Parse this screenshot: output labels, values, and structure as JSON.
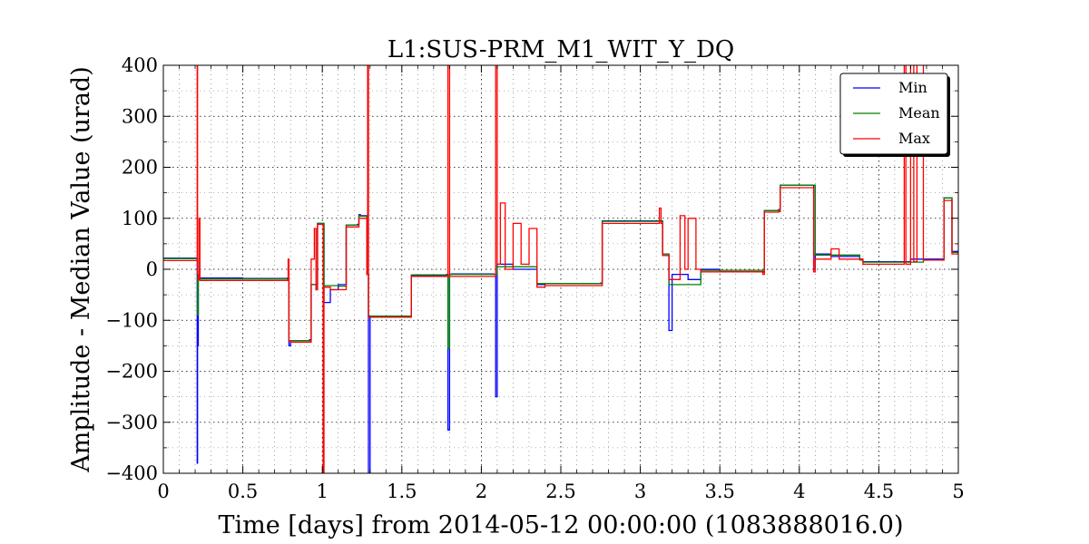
{
  "chart_data": {
    "type": "line",
    "title": "L1:SUS-PRM_M1_WIT_Y_DQ",
    "xlabel": "Time [days] from 2014-05-12 00:00:00 (1083888016.0)",
    "ylabel": "Amplitude - Median Value (urad)",
    "xlim": [
      0,
      5
    ],
    "ylim": [
      -400,
      400
    ],
    "x_ticks": [
      0,
      0.5,
      1,
      1.5,
      2,
      2.5,
      3,
      3.5,
      4,
      4.5,
      5
    ],
    "x_tick_labels": [
      "0",
      "0.5",
      "1",
      "1.5",
      "2",
      "2.5",
      "3",
      "3.5",
      "4",
      "4.5",
      "5"
    ],
    "y_ticks": [
      -400,
      -300,
      -200,
      -100,
      0,
      100,
      200,
      300,
      400
    ],
    "y_tick_labels": [
      "−400",
      "−300",
      "−200",
      "−100",
      "0",
      "100",
      "200",
      "300",
      "400"
    ],
    "grid": true,
    "legend_position": "top-right",
    "series": [
      {
        "name": "Min",
        "color": "#0000ff",
        "x": [
          0,
          0.21,
          0.213,
          0.215,
          0.217,
          0.22,
          0.23,
          0.5,
          0.78,
          0.79,
          0.8,
          0.92,
          0.93,
          0.96,
          0.97,
          1.0,
          1.01,
          1.05,
          1.1,
          1.14,
          1.15,
          1.22,
          1.23,
          1.24,
          1.28,
          1.29,
          1.3,
          1.55,
          1.56,
          1.78,
          1.79,
          1.8,
          1.81,
          2.08,
          2.09,
          2.1,
          2.2,
          2.35,
          2.4,
          2.75,
          2.76,
          3.13,
          3.14,
          3.17,
          3.18,
          3.2,
          3.3,
          3.38,
          3.5,
          3.77,
          3.78,
          3.87,
          3.88,
          4.08,
          4.09,
          4.1,
          4.2,
          4.38,
          4.4,
          4.68,
          4.7,
          4.78,
          4.9,
          4.91,
          4.95,
          4.96,
          5.0
        ],
        "y": [
          22,
          22,
          -380,
          -100,
          -150,
          -15,
          -17,
          -18,
          -17,
          -150,
          -140,
          -138,
          -30,
          -40,
          90,
          90,
          -65,
          -40,
          -30,
          -30,
          87,
          88,
          107,
          105,
          -10,
          -520,
          -92,
          -92,
          -12,
          -10,
          -315,
          -10,
          -9,
          -10,
          -250,
          10,
          0,
          -30,
          -28,
          -27,
          95,
          95,
          30,
          30,
          -120,
          -10,
          -20,
          0,
          -5,
          -5,
          115,
          117,
          165,
          165,
          0,
          30,
          25,
          20,
          15,
          15,
          20,
          20,
          20,
          140,
          140,
          35,
          35
        ]
      },
      {
        "name": "Mean",
        "color": "#008000",
        "x": [
          0,
          0.21,
          0.215,
          0.22,
          0.23,
          0.5,
          0.78,
          0.79,
          0.8,
          0.92,
          0.93,
          0.97,
          1.0,
          1.01,
          1.1,
          1.14,
          1.15,
          1.22,
          1.23,
          1.24,
          1.28,
          1.29,
          1.3,
          1.55,
          1.56,
          1.78,
          1.79,
          1.8,
          1.81,
          2.08,
          2.1,
          2.35,
          2.4,
          2.75,
          2.76,
          3.13,
          3.14,
          3.17,
          3.18,
          3.38,
          3.77,
          3.78,
          3.87,
          3.88,
          4.08,
          4.1,
          4.38,
          4.4,
          4.68,
          4.78,
          4.9,
          4.91,
          4.95,
          4.96,
          5.0
        ],
        "y": [
          21,
          21,
          -90,
          -17,
          -19,
          -19,
          -18,
          -140,
          -140,
          -140,
          -30,
          90,
          90,
          -32,
          -33,
          -33,
          87,
          87,
          105,
          104,
          -10,
          -92,
          -92,
          -92,
          -11,
          -11,
          -155,
          -10,
          -10,
          -10,
          5,
          -28,
          -28,
          -28,
          94,
          94,
          30,
          30,
          -30,
          -2,
          -6,
          115,
          116,
          165,
          165,
          28,
          18,
          14,
          14,
          18,
          18,
          140,
          140,
          33,
          33
        ]
      },
      {
        "name": "Max",
        "color": "#ff0000",
        "x": [
          0,
          0.21,
          0.213,
          0.215,
          0.22,
          0.225,
          0.23,
          0.5,
          0.78,
          0.785,
          0.79,
          0.8,
          0.92,
          0.93,
          0.95,
          0.96,
          0.97,
          0.99,
          1.0,
          1.005,
          1.01,
          1.05,
          1.1,
          1.14,
          1.15,
          1.22,
          1.23,
          1.24,
          1.28,
          1.285,
          1.29,
          1.3,
          1.55,
          1.56,
          1.78,
          1.79,
          1.8,
          1.81,
          2.08,
          2.09,
          2.1,
          2.12,
          2.15,
          2.2,
          2.25,
          2.3,
          2.35,
          2.4,
          2.75,
          2.76,
          3.1,
          3.12,
          3.13,
          3.14,
          3.17,
          3.18,
          3.25,
          3.28,
          3.3,
          3.35,
          3.38,
          3.77,
          3.78,
          3.87,
          3.88,
          4.08,
          4.09,
          4.1,
          4.2,
          4.25,
          4.38,
          4.4,
          4.65,
          4.66,
          4.67,
          4.7,
          4.72,
          4.74,
          4.78,
          4.9,
          4.91,
          4.95,
          4.96,
          5.0
        ],
        "y": [
          17,
          17,
          420,
          -10,
          -20,
          100,
          -22,
          -22,
          -21,
          20,
          -140,
          -143,
          -143,
          20,
          80,
          -40,
          88,
          88,
          88,
          -420,
          -35,
          -40,
          -40,
          -40,
          83,
          83,
          100,
          100,
          -10,
          420,
          -94,
          -94,
          -94,
          -14,
          -14,
          420,
          -14,
          -14,
          -14,
          420,
          10,
          130,
          0,
          90,
          10,
          80,
          -35,
          -32,
          -32,
          90,
          90,
          120,
          90,
          27,
          27,
          -20,
          105,
          0,
          100,
          0,
          -5,
          -10,
          112,
          113,
          160,
          160,
          -5,
          20,
          40,
          20,
          20,
          10,
          10,
          420,
          10,
          420,
          15,
          420,
          18,
          18,
          135,
          135,
          30,
          30
        ]
      }
    ]
  }
}
